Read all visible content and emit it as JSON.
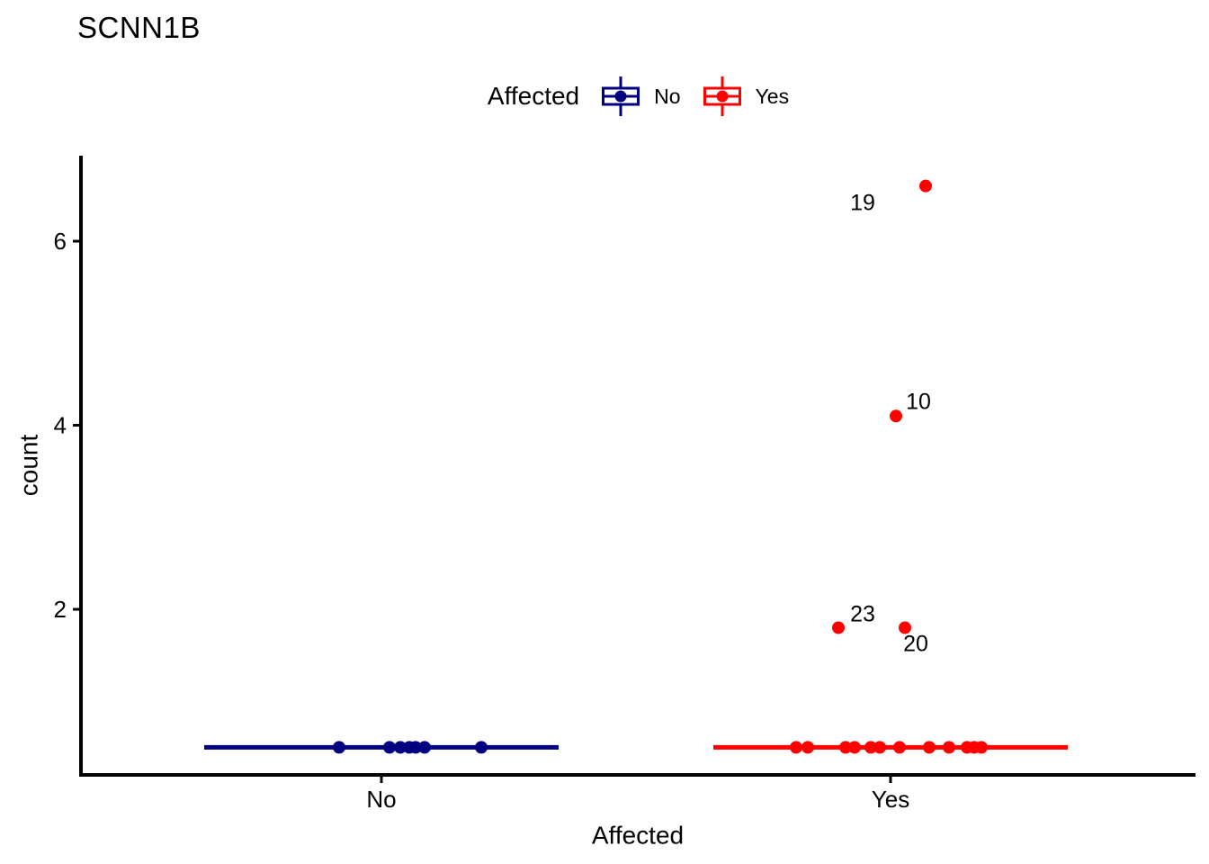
{
  "chart_data": {
    "type": "boxplot",
    "title": "SCNN1B",
    "xlabel": "Affected",
    "ylabel": "count",
    "categories": [
      "No",
      "Yes"
    ],
    "yticks": [
      2,
      4,
      6
    ],
    "ylim": [
      0.2,
      6.9
    ],
    "grid": false,
    "legend_position": "top",
    "legend": {
      "title": "Affected",
      "entries": [
        {
          "label": "No",
          "color": "#000080"
        },
        {
          "label": "Yes",
          "color": "#FF0000"
        }
      ]
    },
    "series": [
      {
        "name": "No",
        "color": "#000080",
        "box": {
          "q1": 0.5,
          "median": 0.5,
          "q3": 0.5
        },
        "points": [
          {
            "dx": -47,
            "value": 0.5
          },
          {
            "dx": 9,
            "value": 0.5
          },
          {
            "dx": 21,
            "value": 0.5
          },
          {
            "dx": 31,
            "value": 0.5
          },
          {
            "dx": 38,
            "value": 0.5
          },
          {
            "dx": 48,
            "value": 0.5
          },
          {
            "dx": 111,
            "value": 0.5
          }
        ]
      },
      {
        "name": "Yes",
        "color": "#FF0000",
        "box": {
          "q1": 0.5,
          "median": 0.5,
          "q3": 0.5
        },
        "points": [
          {
            "dx": -105,
            "value": 0.5
          },
          {
            "dx": -92,
            "value": 0.5
          },
          {
            "dx": -50,
            "value": 0.5
          },
          {
            "dx": -40,
            "value": 0.5
          },
          {
            "dx": -22,
            "value": 0.5
          },
          {
            "dx": -12,
            "value": 0.5
          },
          {
            "dx": 10,
            "value": 0.5
          },
          {
            "dx": 43,
            "value": 0.5
          },
          {
            "dx": 65,
            "value": 0.5
          },
          {
            "dx": 85,
            "value": 0.5
          },
          {
            "dx": 93,
            "value": 0.5
          },
          {
            "dx": 101,
            "value": 0.5
          },
          {
            "dx": 39,
            "value": 6.6,
            "label": "19",
            "label_dx": -70,
            "label_dy": 19
          },
          {
            "dx": 6,
            "value": 4.1,
            "label": "10",
            "label_dx": 25,
            "label_dy": -16
          },
          {
            "dx": -58,
            "value": 1.8,
            "label": "23",
            "label_dx": 27,
            "label_dy": -15
          },
          {
            "dx": 16,
            "value": 1.8,
            "label": "20",
            "label_dx": 12,
            "label_dy": 18
          }
        ]
      }
    ]
  }
}
